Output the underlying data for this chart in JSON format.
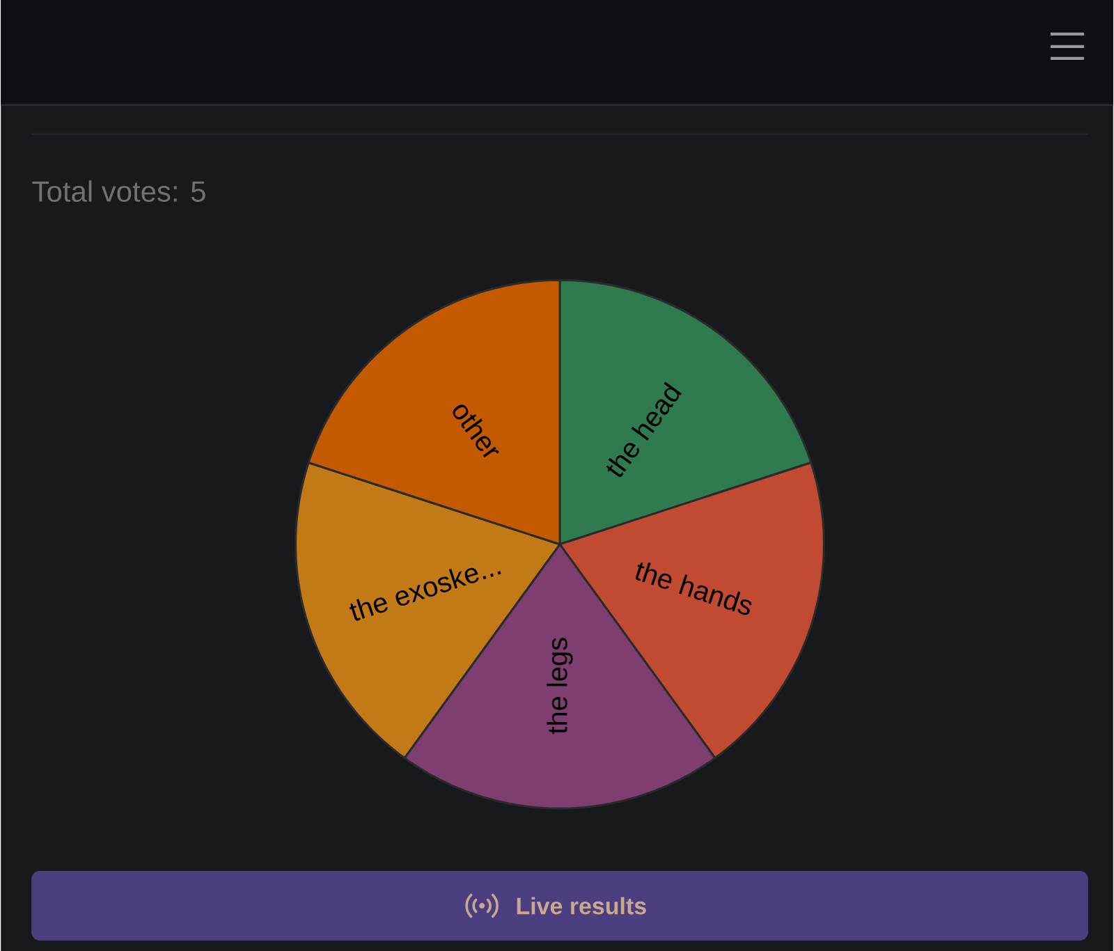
{
  "chart_data": {
    "type": "pie",
    "subtitle": "Total votes: 5",
    "categories": [
      "the head",
      "the hands",
      "the legs",
      "the exoske...",
      "other"
    ],
    "values": [
      20,
      20,
      20,
      20,
      20
    ],
    "colors": [
      "#2f7a4f",
      "#c04a32",
      "#7e3f70",
      "#c27a17",
      "#c45a00"
    ],
    "annotations": [
      "Live results"
    ]
  }
}
